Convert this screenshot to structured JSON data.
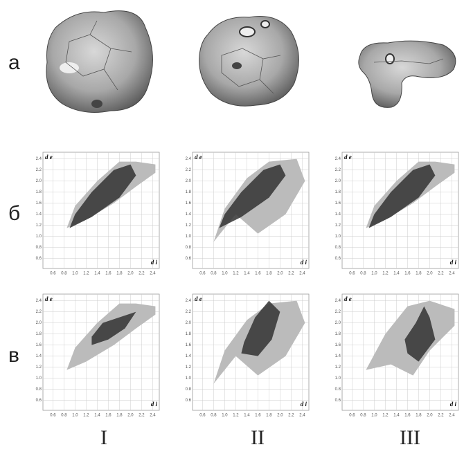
{
  "rows": [
    "а",
    "б",
    "в"
  ],
  "columns": [
    "I",
    "II",
    "III"
  ],
  "plot_axes": {
    "x_label": "d i",
    "y_label": "d e",
    "ticks": [
      "0.6",
      "0.8",
      "1.0",
      "1.2",
      "1.4",
      "1.6",
      "1.8",
      "2.0",
      "2.2",
      "2.4"
    ]
  }
}
